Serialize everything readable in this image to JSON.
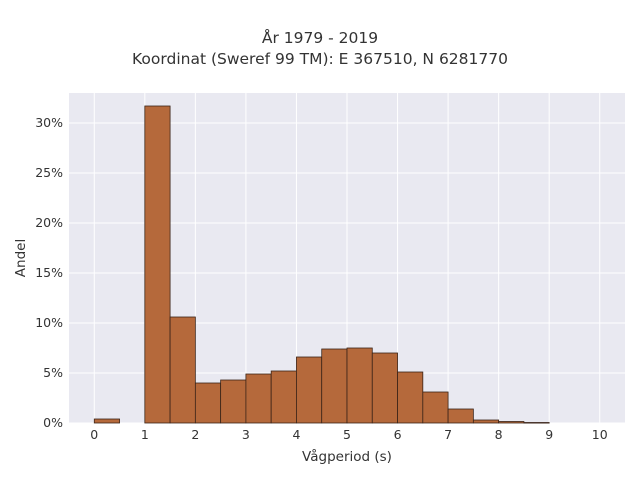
{
  "chart_data": {
    "type": "bar",
    "title": "År 1979 - 2019",
    "subtitle": "Koordinat (Sweref 99 TM): E 367510, N 6281770",
    "xlabel": "Vågperiod (s)",
    "ylabel": "Andel",
    "xlim": [
      -0.5,
      10.5
    ],
    "ylim": [
      0,
      0.33
    ],
    "bin_width": 0.5,
    "x_ticks": [
      0,
      1,
      2,
      3,
      4,
      5,
      6,
      7,
      8,
      9,
      10
    ],
    "x_tick_labels": [
      "0",
      "1",
      "2",
      "3",
      "4",
      "5",
      "6",
      "7",
      "8",
      "9",
      "10"
    ],
    "y_ticks": [
      0,
      0.05,
      0.1,
      0.15,
      0.2,
      0.25,
      0.3
    ],
    "y_tick_labels": [
      "0%",
      "5%",
      "10%",
      "15%",
      "20%",
      "25%",
      "30%"
    ],
    "bins": [
      {
        "start": 0.0,
        "value": 0.004
      },
      {
        "start": 0.5,
        "value": 0.0
      },
      {
        "start": 1.0,
        "value": 0.317
      },
      {
        "start": 1.5,
        "value": 0.106
      },
      {
        "start": 2.0,
        "value": 0.04
      },
      {
        "start": 2.5,
        "value": 0.043
      },
      {
        "start": 3.0,
        "value": 0.049
      },
      {
        "start": 3.5,
        "value": 0.052
      },
      {
        "start": 4.0,
        "value": 0.066
      },
      {
        "start": 4.5,
        "value": 0.074
      },
      {
        "start": 5.0,
        "value": 0.075
      },
      {
        "start": 5.5,
        "value": 0.07
      },
      {
        "start": 6.0,
        "value": 0.051
      },
      {
        "start": 6.5,
        "value": 0.031
      },
      {
        "start": 7.0,
        "value": 0.014
      },
      {
        "start": 7.5,
        "value": 0.003
      },
      {
        "start": 8.0,
        "value": 0.0015
      },
      {
        "start": 8.5,
        "value": 0.0005
      },
      {
        "start": 9.0,
        "value": 0.0
      },
      {
        "start": 9.5,
        "value": 0.0
      }
    ],
    "grid": true,
    "colors": {
      "bar_fill": "#b5693b",
      "bar_edge": "#3b2418",
      "plot_background": "#e9e9f1",
      "grid": "#ffffff"
    }
  }
}
